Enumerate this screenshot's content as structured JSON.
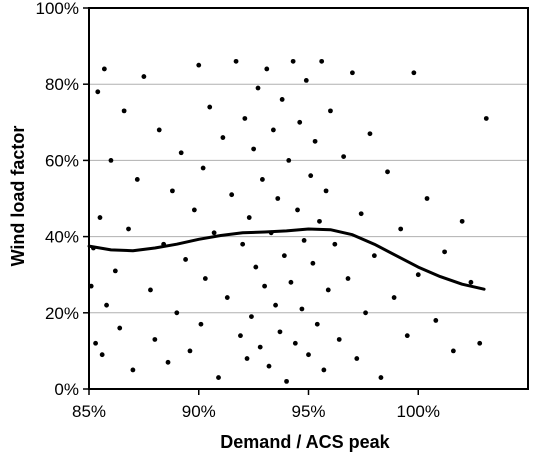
{
  "chart_data": {
    "type": "scatter",
    "title": "",
    "xlabel": "Demand / ACS peak",
    "ylabel": "Wind load factor",
    "xlim": [
      0.85,
      1.05
    ],
    "ylim": [
      0,
      1
    ],
    "x_ticks": [
      0.85,
      0.9,
      0.95,
      1.0
    ],
    "x_tick_labels": [
      "85%",
      "90%",
      "95%",
      "100%"
    ],
    "y_ticks": [
      0,
      0.2,
      0.4,
      0.6,
      0.8,
      1.0
    ],
    "y_tick_labels": [
      "0%",
      "20%",
      "40%",
      "60%",
      "80%",
      "100%"
    ],
    "grid": {
      "horizontal": true,
      "vertical": false
    },
    "legend": "none",
    "colors": {
      "points": "#000000",
      "trend": "#000000",
      "grid": "#b0b0b0",
      "frame": "#000000"
    },
    "series": [
      {
        "type": "scatter",
        "x": [
          0.851,
          0.852,
          0.853,
          0.854,
          0.855,
          0.856,
          0.857,
          0.858,
          0.86,
          0.862,
          0.864,
          0.866,
          0.868,
          0.87,
          0.872,
          0.875,
          0.878,
          0.88,
          0.882,
          0.884,
          0.886,
          0.888,
          0.89,
          0.892,
          0.894,
          0.896,
          0.898,
          0.9,
          0.901,
          0.902,
          0.903,
          0.905,
          0.907,
          0.909,
          0.911,
          0.913,
          0.915,
          0.917,
          0.919,
          0.92,
          0.921,
          0.922,
          0.923,
          0.924,
          0.925,
          0.926,
          0.927,
          0.928,
          0.929,
          0.93,
          0.931,
          0.932,
          0.933,
          0.934,
          0.935,
          0.936,
          0.937,
          0.938,
          0.939,
          0.94,
          0.941,
          0.942,
          0.943,
          0.944,
          0.945,
          0.946,
          0.947,
          0.948,
          0.949,
          0.95,
          0.951,
          0.952,
          0.953,
          0.954,
          0.955,
          0.956,
          0.957,
          0.958,
          0.959,
          0.96,
          0.962,
          0.964,
          0.966,
          0.968,
          0.97,
          0.972,
          0.974,
          0.976,
          0.978,
          0.98,
          0.983,
          0.986,
          0.989,
          0.992,
          0.995,
          0.998,
          1.0,
          1.004,
          1.008,
          1.012,
          1.016,
          1.02,
          1.024,
          1.028,
          1.031
        ],
        "y": [
          0.27,
          0.37,
          0.12,
          0.78,
          0.45,
          0.09,
          0.84,
          0.22,
          0.6,
          0.31,
          0.16,
          0.73,
          0.42,
          0.05,
          0.55,
          0.82,
          0.26,
          0.13,
          0.68,
          0.38,
          0.07,
          0.52,
          0.2,
          0.62,
          0.34,
          0.1,
          0.47,
          0.85,
          0.17,
          0.58,
          0.29,
          0.74,
          0.41,
          0.03,
          0.66,
          0.24,
          0.51,
          0.86,
          0.14,
          0.38,
          0.71,
          0.08,
          0.45,
          0.19,
          0.63,
          0.32,
          0.79,
          0.11,
          0.55,
          0.27,
          0.84,
          0.06,
          0.41,
          0.68,
          0.22,
          0.5,
          0.15,
          0.76,
          0.35,
          0.02,
          0.6,
          0.28,
          0.86,
          0.12,
          0.47,
          0.7,
          0.21,
          0.39,
          0.81,
          0.09,
          0.56,
          0.33,
          0.65,
          0.17,
          0.44,
          0.86,
          0.05,
          0.52,
          0.26,
          0.73,
          0.38,
          0.13,
          0.61,
          0.29,
          0.83,
          0.08,
          0.46,
          0.2,
          0.67,
          0.35,
          0.03,
          0.57,
          0.24,
          0.42,
          0.14,
          0.83,
          0.3,
          0.5,
          0.18,
          0.36,
          0.1,
          0.44,
          0.28,
          0.12,
          0.71
        ]
      },
      {
        "type": "line",
        "x": [
          0.85,
          0.86,
          0.87,
          0.88,
          0.89,
          0.9,
          0.91,
          0.92,
          0.93,
          0.94,
          0.95,
          0.96,
          0.97,
          0.98,
          0.99,
          1.0,
          1.01,
          1.02,
          1.03
        ],
        "y": [
          0.375,
          0.365,
          0.363,
          0.37,
          0.38,
          0.393,
          0.403,
          0.41,
          0.412,
          0.415,
          0.42,
          0.418,
          0.405,
          0.38,
          0.35,
          0.32,
          0.295,
          0.275,
          0.262
        ]
      }
    ]
  }
}
